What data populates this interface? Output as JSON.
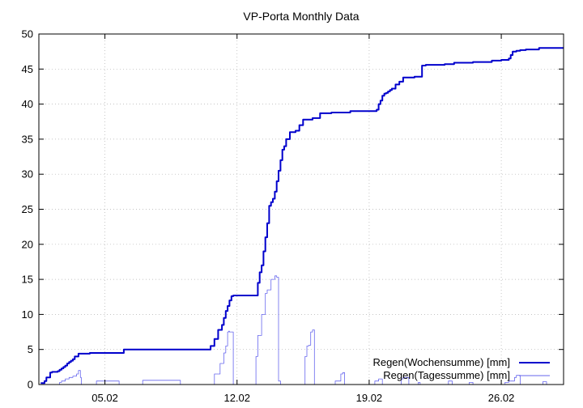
{
  "chart_data": {
    "type": "line",
    "title": "VP-Porta Monthly Data",
    "xlabel": "",
    "ylabel": "",
    "x_ticks": [
      "05.02",
      "12.02",
      "19.02",
      "26.02"
    ],
    "x_tick_days": [
      5,
      12,
      19,
      26
    ],
    "xlim": [
      1.5,
      29.3
    ],
    "ylim": [
      0,
      50
    ],
    "y_ticks": [
      0,
      5,
      10,
      15,
      20,
      25,
      30,
      35,
      40,
      45,
      50
    ],
    "grid": true,
    "legend_position": "bottom-right",
    "series": [
      {
        "name": "Regen(Wochensumme) [mm]",
        "color": "#0000cc",
        "x": [
          1.6,
          1.8,
          1.9,
          2.1,
          2.2,
          2.3,
          2.5,
          2.6,
          2.7,
          2.8,
          2.9,
          3.0,
          3.1,
          3.2,
          3.3,
          3.4,
          3.6,
          4.2,
          4.5,
          5.5,
          6.0,
          8.0,
          10.5,
          10.6,
          10.8,
          11.0,
          11.2,
          11.3,
          11.4,
          11.5,
          11.6,
          11.7,
          11.8,
          12.0,
          12.4,
          12.8,
          13.1,
          13.2,
          13.3,
          13.4,
          13.5,
          13.6,
          13.7,
          13.8,
          13.9,
          14.0,
          14.1,
          14.2,
          14.3,
          14.4,
          14.5,
          14.6,
          14.8,
          14.9,
          15.1,
          15.3,
          15.5,
          15.7,
          16.0,
          16.4,
          17.0,
          17.5,
          18.0,
          18.5,
          19.0,
          19.4,
          19.5,
          19.6,
          19.7,
          19.8,
          19.9,
          20.0,
          20.1,
          20.2,
          20.4,
          20.6,
          20.8,
          21.0,
          21.4,
          21.8,
          22.0,
          23.0,
          23.5,
          24.5,
          25.5,
          26.0,
          26.4,
          26.5,
          26.6,
          26.8,
          27.0,
          27.3,
          28.0,
          29.3
        ],
        "y": [
          0.2,
          0.5,
          1.0,
          1.7,
          1.8,
          1.8,
          1.9,
          2.1,
          2.3,
          2.5,
          2.7,
          3.0,
          3.2,
          3.4,
          3.6,
          4.0,
          4.4,
          4.5,
          4.5,
          4.5,
          5.0,
          5.0,
          5.0,
          5.5,
          6.5,
          7.8,
          8.5,
          9.5,
          10.5,
          11.2,
          12.0,
          12.6,
          12.7,
          12.7,
          12.7,
          12.7,
          14.5,
          16.0,
          17.0,
          19.0,
          21.0,
          23.0,
          25.5,
          26.0,
          26.5,
          27.5,
          29.0,
          30.5,
          32.0,
          33.5,
          34.0,
          35.0,
          36.0,
          36.0,
          36.2,
          37.0,
          37.8,
          37.8,
          38.0,
          38.7,
          38.8,
          38.8,
          39.0,
          39.0,
          39.0,
          39.2,
          40.0,
          40.5,
          41.2,
          41.5,
          41.6,
          41.8,
          42.0,
          42.2,
          42.8,
          43.2,
          43.8,
          43.8,
          43.9,
          45.5,
          45.6,
          45.7,
          45.9,
          46.0,
          46.2,
          46.3,
          46.5,
          47.0,
          47.5,
          47.6,
          47.7,
          47.8,
          48.0,
          48.0
        ],
        "line_width": 2
      },
      {
        "name": "Regen(Tagessumme) [mm]",
        "color": "#6666ee",
        "x": [
          1.6,
          2.5,
          2.6,
          2.7,
          2.9,
          3.1,
          3.3,
          3.5,
          3.6,
          3.65,
          3.7,
          3.75,
          4.0,
          4.5,
          4.55,
          5.0,
          5.5,
          5.7,
          5.75,
          6.8,
          7.0,
          7.5,
          8.0,
          9.0,
          10.0,
          10.5,
          10.8,
          11.1,
          11.3,
          11.4,
          11.5,
          11.55,
          11.6,
          11.8,
          12.5,
          12.8,
          13.0,
          13.1,
          13.3,
          13.5,
          13.6,
          13.8,
          14.0,
          14.1,
          14.2,
          14.3,
          14.35,
          14.4,
          14.45,
          14.5,
          14.7,
          14.8,
          15.0,
          15.1,
          15.2,
          15.3,
          15.5,
          15.6,
          15.7,
          15.8,
          15.9,
          16.0,
          16.05,
          16.1,
          16.5,
          17.0,
          17.2,
          17.5,
          17.6,
          17.65,
          17.7,
          19.0,
          19.3,
          19.5,
          19.6,
          19.65,
          19.7,
          20.5,
          20.7,
          20.8,
          21.0,
          21.1,
          21.5,
          21.6,
          21.65,
          21.7,
          23.0,
          23.2,
          23.3,
          23.35,
          23.4,
          24.0,
          24.3,
          24.4,
          24.45,
          24.5,
          25.5,
          26.0,
          26.2,
          26.4,
          26.5,
          26.7,
          26.8,
          26.85,
          27.0,
          28.0,
          28.2,
          28.3,
          28.35,
          28.4,
          29.3
        ],
        "y": [
          0.0,
          0.0,
          0.3,
          0.5,
          0.8,
          1.0,
          1.2,
          1.5,
          2.0,
          2.0,
          1.0,
          0.0,
          0.0,
          0.0,
          0.5,
          0.5,
          0.5,
          0.5,
          0.0,
          0.0,
          0.6,
          0.6,
          0.6,
          0.0,
          0.0,
          0.0,
          1.5,
          3.0,
          4.5,
          5.5,
          7.5,
          7.6,
          7.5,
          0.0,
          0.0,
          0.0,
          4.0,
          7.0,
          10.0,
          13.0,
          13.5,
          15.0,
          15.5,
          15.3,
          0.5,
          0.0,
          0.0,
          0.0,
          0.0,
          0.0,
          0.0,
          0.0,
          0.0,
          0.0,
          0.0,
          0.0,
          0.0,
          4.0,
          5.5,
          5.6,
          7.5,
          7.8,
          7.8,
          0.0,
          0.0,
          0.0,
          0.5,
          1.5,
          1.7,
          1.7,
          0.0,
          0.0,
          0.5,
          0.8,
          0.8,
          0.8,
          0.0,
          0.0,
          0.8,
          1.0,
          1.0,
          0.0,
          0.0,
          0.3,
          0.3,
          0.0,
          0.0,
          0.5,
          0.5,
          0.5,
          0.0,
          0.0,
          0.3,
          0.3,
          0.3,
          0.0,
          0.0,
          0.0,
          0.3,
          0.5,
          0.5,
          1.0,
          1.3,
          1.3,
          0.0,
          0.0,
          0.4,
          0.4,
          0.4,
          0.0,
          0.0
        ],
        "line_width": 0.8
      }
    ]
  }
}
